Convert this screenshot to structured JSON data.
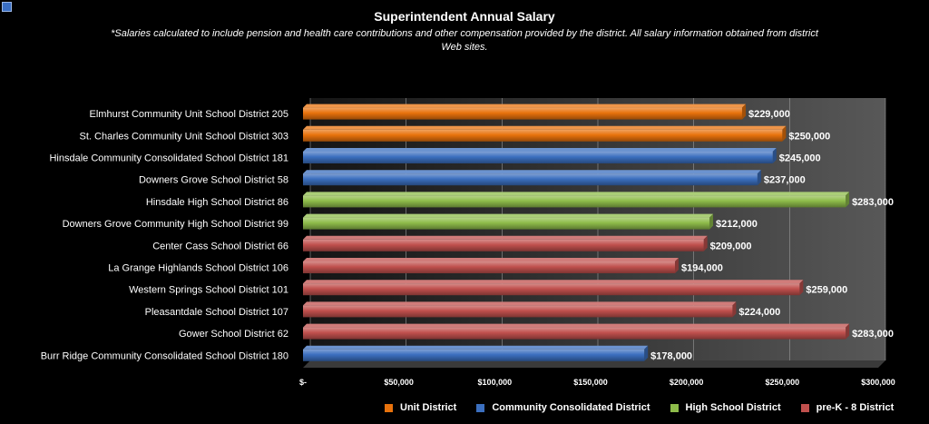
{
  "chart_data": {
    "type": "bar",
    "orientation": "horizontal",
    "title": "Superintendent Annual Salary",
    "subtitle": "*Salaries calculated to include pension and health care contributions and other compensation provided by the district. All salary information obtained from district Web sites.",
    "xlabel": "",
    "ylabel": "",
    "xlim": [
      0,
      300000
    ],
    "grid": true,
    "legend_position": "bottom",
    "x_ticks": [
      {
        "value": 0,
        "label": "$-"
      },
      {
        "value": 50000,
        "label": "$50,000"
      },
      {
        "value": 100000,
        "label": "$100,000"
      },
      {
        "value": 150000,
        "label": "$150,000"
      },
      {
        "value": 200000,
        "label": "$200,000"
      },
      {
        "value": 250000,
        "label": "$250,000"
      },
      {
        "value": 300000,
        "label": "$300,000"
      }
    ],
    "categories": [
      "Elmhurst Community Unit School District 205",
      "St. Charles Community Unit School District 303",
      "Hinsdale Community Consolidated School District 181",
      "Downers Grove School District 58",
      "Hinsdale High School District 86",
      "Downers Grove Community High School District 99",
      "Center Cass School District 66",
      "La Grange Highlands School District 106",
      "Western Springs School District 101",
      "Pleasantdale School District 107",
      "Gower School District 62",
      "Burr Ridge Community Consolidated School District 180"
    ],
    "values": [
      229000,
      250000,
      245000,
      237000,
      283000,
      212000,
      209000,
      194000,
      259000,
      224000,
      283000,
      178000
    ],
    "value_labels": [
      "$229,000",
      "$250,000",
      "$245,000",
      "$237,000",
      "$283,000",
      "$212,000",
      "$209,000",
      "$194,000",
      "$259,000",
      "$224,000",
      "$283,000",
      "$178,000"
    ],
    "bar_series": [
      0,
      0,
      1,
      1,
      2,
      2,
      3,
      3,
      3,
      3,
      3,
      1
    ],
    "series": [
      {
        "name": "Unit District",
        "color": "#e8720c"
      },
      {
        "name": "Community Consolidated District",
        "color": "#3b6fbf"
      },
      {
        "name": "High School District",
        "color": "#8ebc4a"
      },
      {
        "name": "pre-K - 8 District",
        "color": "#c0504d"
      }
    ]
  }
}
